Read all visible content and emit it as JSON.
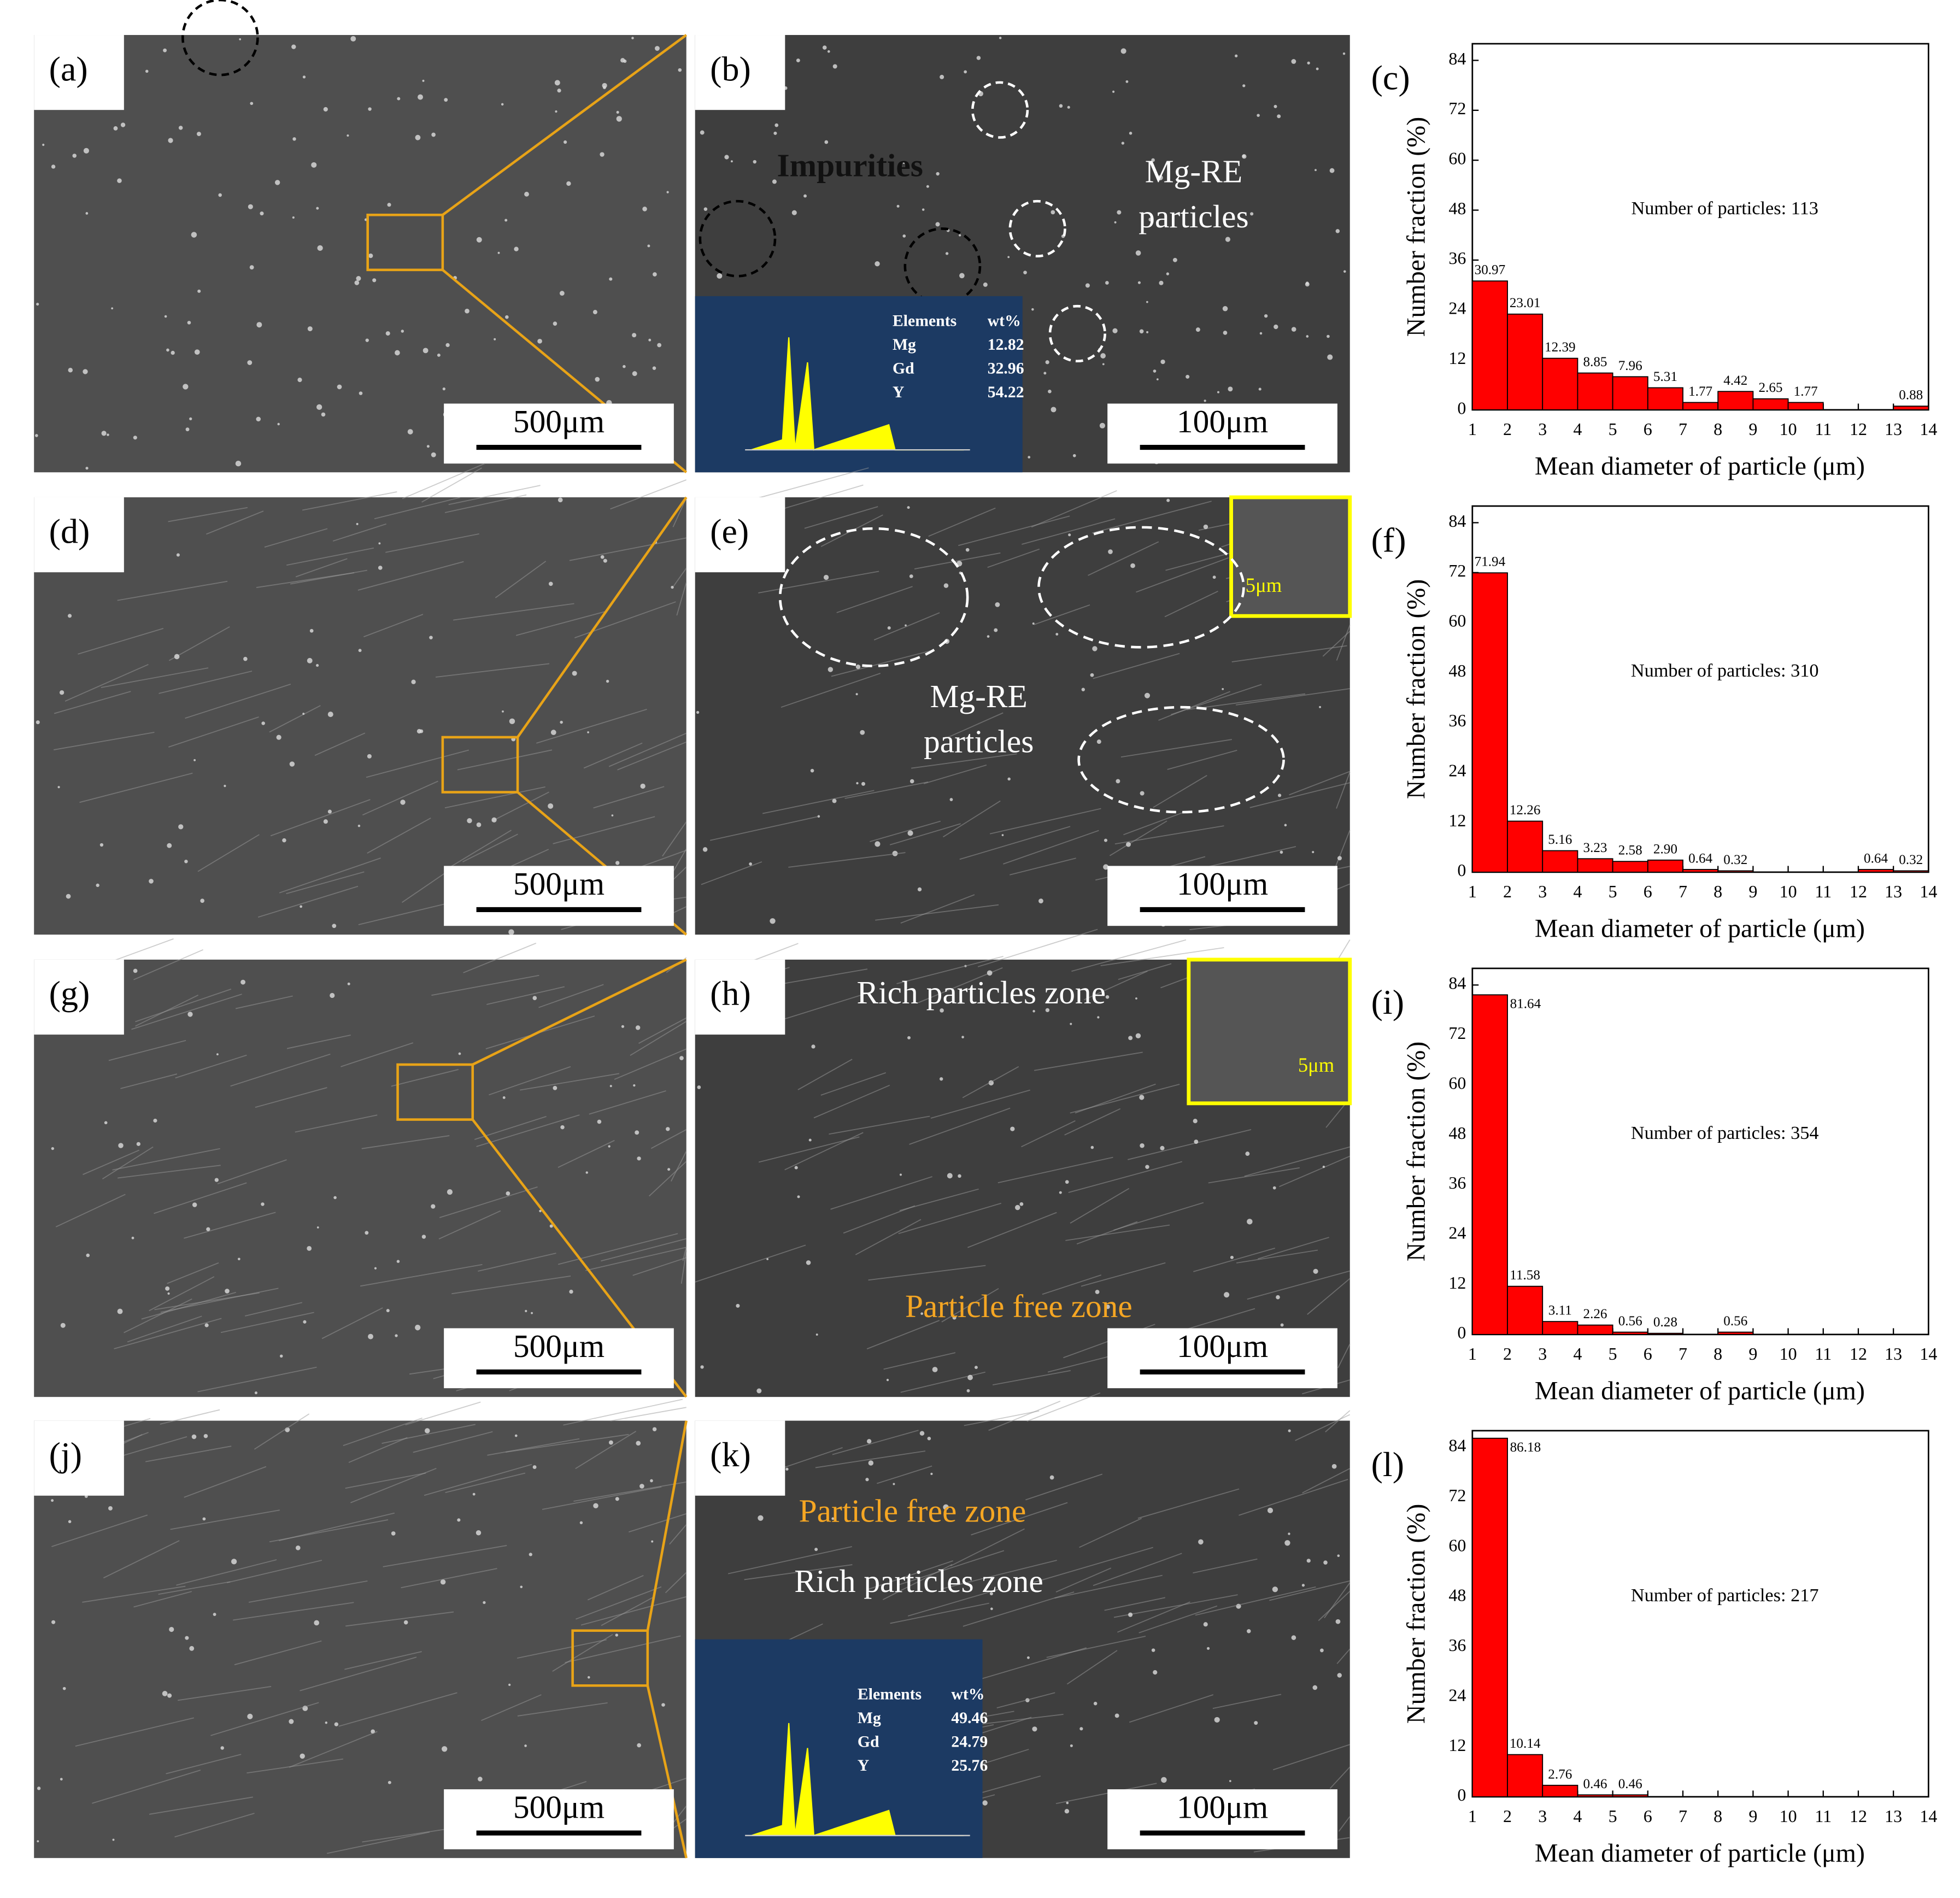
{
  "panels": [
    {
      "label": "(a)",
      "scale_bar": "500μm"
    },
    {
      "label": "(b)",
      "scale_bar": "100μm",
      "annotations": [
        {
          "text": "Impurities",
          "color": "#111111"
        },
        {
          "text": "Mg-RE",
          "color": "#ffffff"
        },
        {
          "text": "particles",
          "color": "#ffffff"
        }
      ],
      "eds": {
        "header": [
          "Elements",
          "wt%"
        ],
        "rows": [
          [
            "Mg",
            12.82
          ],
          [
            "Gd",
            32.96
          ],
          [
            "Y",
            54.22
          ]
        ]
      }
    },
    {
      "label": "(d)",
      "scale_bar": "500μm"
    },
    {
      "label": "(e)",
      "scale_bar": "100μm",
      "annotations": [
        {
          "text": "Mg-RE",
          "color": "#ffffff"
        },
        {
          "text": "particles",
          "color": "#ffffff"
        },
        {
          "text": "5μm",
          "color": "#ffff00"
        }
      ]
    },
    {
      "label": "(g)",
      "scale_bar": "500μm"
    },
    {
      "label": "(h)",
      "scale_bar": "100μm",
      "annotations": [
        {
          "text": "Rich particles zone",
          "color": "#ffffff"
        },
        {
          "text": "Particle free zone",
          "color": "#f5a623"
        },
        {
          "text": "5μm",
          "color": "#ffff00"
        }
      ]
    },
    {
      "label": "(j)",
      "scale_bar": "500μm"
    },
    {
      "label": "(k)",
      "scale_bar": "100μm",
      "annotations": [
        {
          "text": "Particle free zone",
          "color": "#f5a623"
        },
        {
          "text": "Rich particles zone",
          "color": "#ffffff"
        }
      ],
      "eds": {
        "header": [
          "Elements",
          "wt%"
        ],
        "rows": [
          [
            "Mg",
            49.46
          ],
          [
            "Gd",
            24.79
          ],
          [
            "Y",
            25.76
          ]
        ]
      }
    }
  ],
  "chart_data": [
    {
      "type": "histogram",
      "label": "(c)",
      "annotation": "Number of particles: 113",
      "x_label": "Mean diameter of particle (μm)",
      "y_label": "Number fraction (%)",
      "bins": [
        1,
        2,
        3,
        4,
        5,
        6,
        7,
        8,
        9,
        10,
        11,
        12,
        13,
        14
      ],
      "values": [
        30.97,
        23.01,
        12.39,
        8.85,
        7.96,
        5.31,
        1.77,
        4.42,
        2.65,
        1.77,
        0,
        0,
        0.88
      ],
      "value_labels": [
        "30.97",
        "23.01",
        "12.39",
        "8.85",
        "7.96",
        "5.31",
        "1.77",
        "4.42",
        "2.65",
        "1.77",
        null,
        null,
        "0.88"
      ],
      "color": "#ff0000",
      "xlim": [
        1,
        14
      ],
      "xticks": [
        1,
        2,
        3,
        4,
        5,
        6,
        7,
        8,
        9,
        10,
        11,
        12,
        13,
        14
      ],
      "ylim": [
        0,
        88
      ],
      "yticks": [
        0,
        12,
        24,
        36,
        48,
        60,
        72,
        84
      ]
    },
    {
      "type": "histogram",
      "label": "(f)",
      "annotation": "Number of particles: 310",
      "x_label": "Mean diameter of particle (μm)",
      "y_label": "Number fraction (%)",
      "bins": [
        1,
        2,
        3,
        4,
        5,
        6,
        7,
        8,
        9,
        10,
        11,
        12,
        13,
        14
      ],
      "values": [
        71.94,
        12.26,
        5.16,
        3.23,
        2.58,
        2.9,
        0.64,
        0.32,
        0,
        0,
        0,
        0.64,
        0.32
      ],
      "value_labels": [
        "71.94",
        "12.26",
        "5.16",
        "3.23",
        "2.58",
        "2.90",
        "0.64",
        "0.32",
        null,
        null,
        null,
        "0.64",
        "0.32"
      ],
      "color": "#ff0000",
      "xlim": [
        1,
        14
      ],
      "xticks": [
        1,
        2,
        3,
        4,
        5,
        6,
        7,
        8,
        9,
        10,
        11,
        12,
        13,
        14
      ],
      "ylim": [
        0,
        88
      ],
      "yticks": [
        0,
        12,
        24,
        36,
        48,
        60,
        72,
        84
      ]
    },
    {
      "type": "histogram",
      "label": "(i)",
      "annotation": "Number of particles: 354",
      "x_label": "Mean diameter of particle (μm)",
      "y_label": "Number fraction (%)",
      "bins": [
        1,
        2,
        3,
        4,
        5,
        6,
        7,
        8,
        9,
        10,
        11,
        12,
        13,
        14
      ],
      "values": [
        81.64,
        11.58,
        3.11,
        2.26,
        0.56,
        0.28,
        0,
        0.56,
        0,
        0,
        0,
        0,
        0
      ],
      "value_labels": [
        "81.64",
        "11.58",
        "3.11",
        "2.26",
        "0.56",
        "0.28",
        null,
        "0.56",
        null,
        null,
        null,
        null,
        null
      ],
      "color": "#ff0000",
      "xlim": [
        1,
        14
      ],
      "xticks": [
        1,
        2,
        3,
        4,
        5,
        6,
        7,
        8,
        9,
        10,
        11,
        12,
        13,
        14
      ],
      "ylim": [
        0,
        88
      ],
      "yticks": [
        0,
        12,
        24,
        36,
        48,
        60,
        72,
        84
      ]
    },
    {
      "type": "histogram",
      "label": "(l)",
      "annotation": "Number of particles: 217",
      "x_label": "Mean diameter of particle (μm)",
      "y_label": "Number fraction (%)",
      "bins": [
        1,
        2,
        3,
        4,
        5,
        6,
        7,
        8,
        9,
        10,
        11,
        12,
        13,
        14
      ],
      "values": [
        86.18,
        10.14,
        2.76,
        0.46,
        0.46,
        0,
        0,
        0,
        0,
        0,
        0,
        0,
        0
      ],
      "value_labels": [
        "86.18",
        "10.14",
        "2.76",
        "0.46",
        "0.46",
        null,
        null,
        null,
        null,
        null,
        null,
        null,
        null
      ],
      "color": "#ff0000",
      "xlim": [
        1,
        14
      ],
      "xticks": [
        1,
        2,
        3,
        4,
        5,
        6,
        7,
        8,
        9,
        10,
        11,
        12,
        13,
        14
      ],
      "ylim": [
        0,
        88
      ],
      "yticks": [
        0,
        12,
        24,
        36,
        48,
        60,
        72,
        84
      ]
    }
  ]
}
